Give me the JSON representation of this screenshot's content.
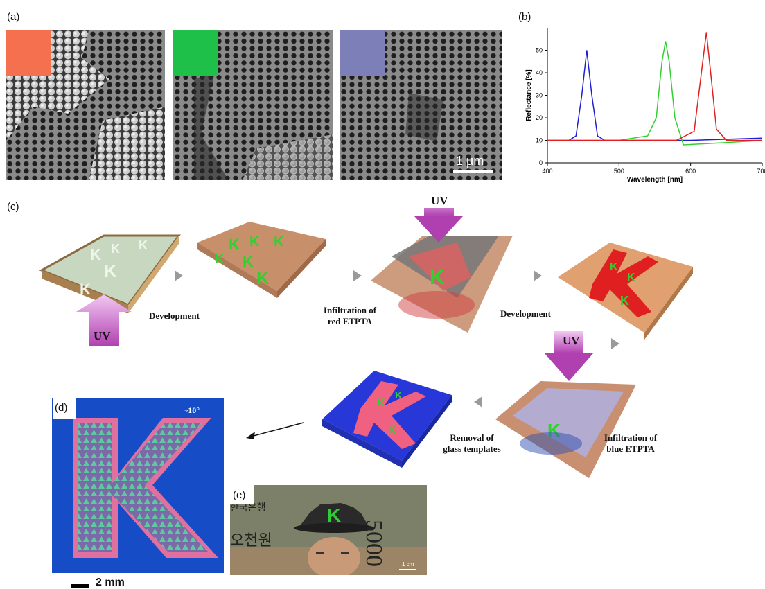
{
  "panels": {
    "a": "(a)",
    "b": "(b)",
    "c": "(c)",
    "d": "(d)",
    "e": "(e)"
  },
  "sem": {
    "scalebar": "1 µm",
    "swatches": [
      "#f4704f",
      "#1fc04a",
      "#7c7fb8"
    ]
  },
  "chart_data": {
    "type": "line",
    "ylabel": "Reflectance [%]",
    "xlabel": "Wavelength [nm]",
    "xlim": [
      400,
      700
    ],
    "ylim": [
      0,
      60
    ],
    "xticks": [
      "400",
      "500",
      "600",
      "700"
    ],
    "yticks": [
      "0",
      "10",
      "20",
      "30",
      "40",
      "50"
    ],
    "series": [
      {
        "color": "#1f1fd0",
        "x": [
          400,
          430,
          440,
          448,
          455,
          462,
          470,
          480,
          500,
          550,
          600,
          650,
          700
        ],
        "y": [
          10,
          10,
          12,
          30,
          50,
          30,
          12,
          10,
          10,
          10,
          10,
          10.5,
          11
        ]
      },
      {
        "color": "#30d030",
        "x": [
          400,
          500,
          540,
          552,
          560,
          565,
          570,
          578,
          590,
          620,
          650,
          700
        ],
        "y": [
          10,
          10,
          12,
          20,
          45,
          54,
          45,
          20,
          8,
          8.5,
          9,
          10
        ]
      },
      {
        "color": "#e02020",
        "x": [
          400,
          500,
          580,
          605,
          615,
          622,
          628,
          636,
          650,
          700
        ],
        "y": [
          10,
          10,
          10,
          14,
          40,
          58,
          40,
          15,
          10,
          10
        ]
      }
    ]
  },
  "process": {
    "uv": "UV",
    "development1": "Development",
    "infiltration_red": [
      "Infiltration of",
      "red ETPTA"
    ],
    "development2": "Development",
    "infiltration_blue": [
      "Infiltration of",
      "blue ETPTA"
    ],
    "removal": [
      "Removal of",
      "glass templates"
    ],
    "k": "K"
  },
  "photo_d": {
    "angle": "~10°",
    "scalebar": "2 mm"
  },
  "photo_e": {
    "denomination": "5000",
    "bank_text": "한국은행",
    "won_text": "오천원",
    "scalebar": "1 cm"
  }
}
